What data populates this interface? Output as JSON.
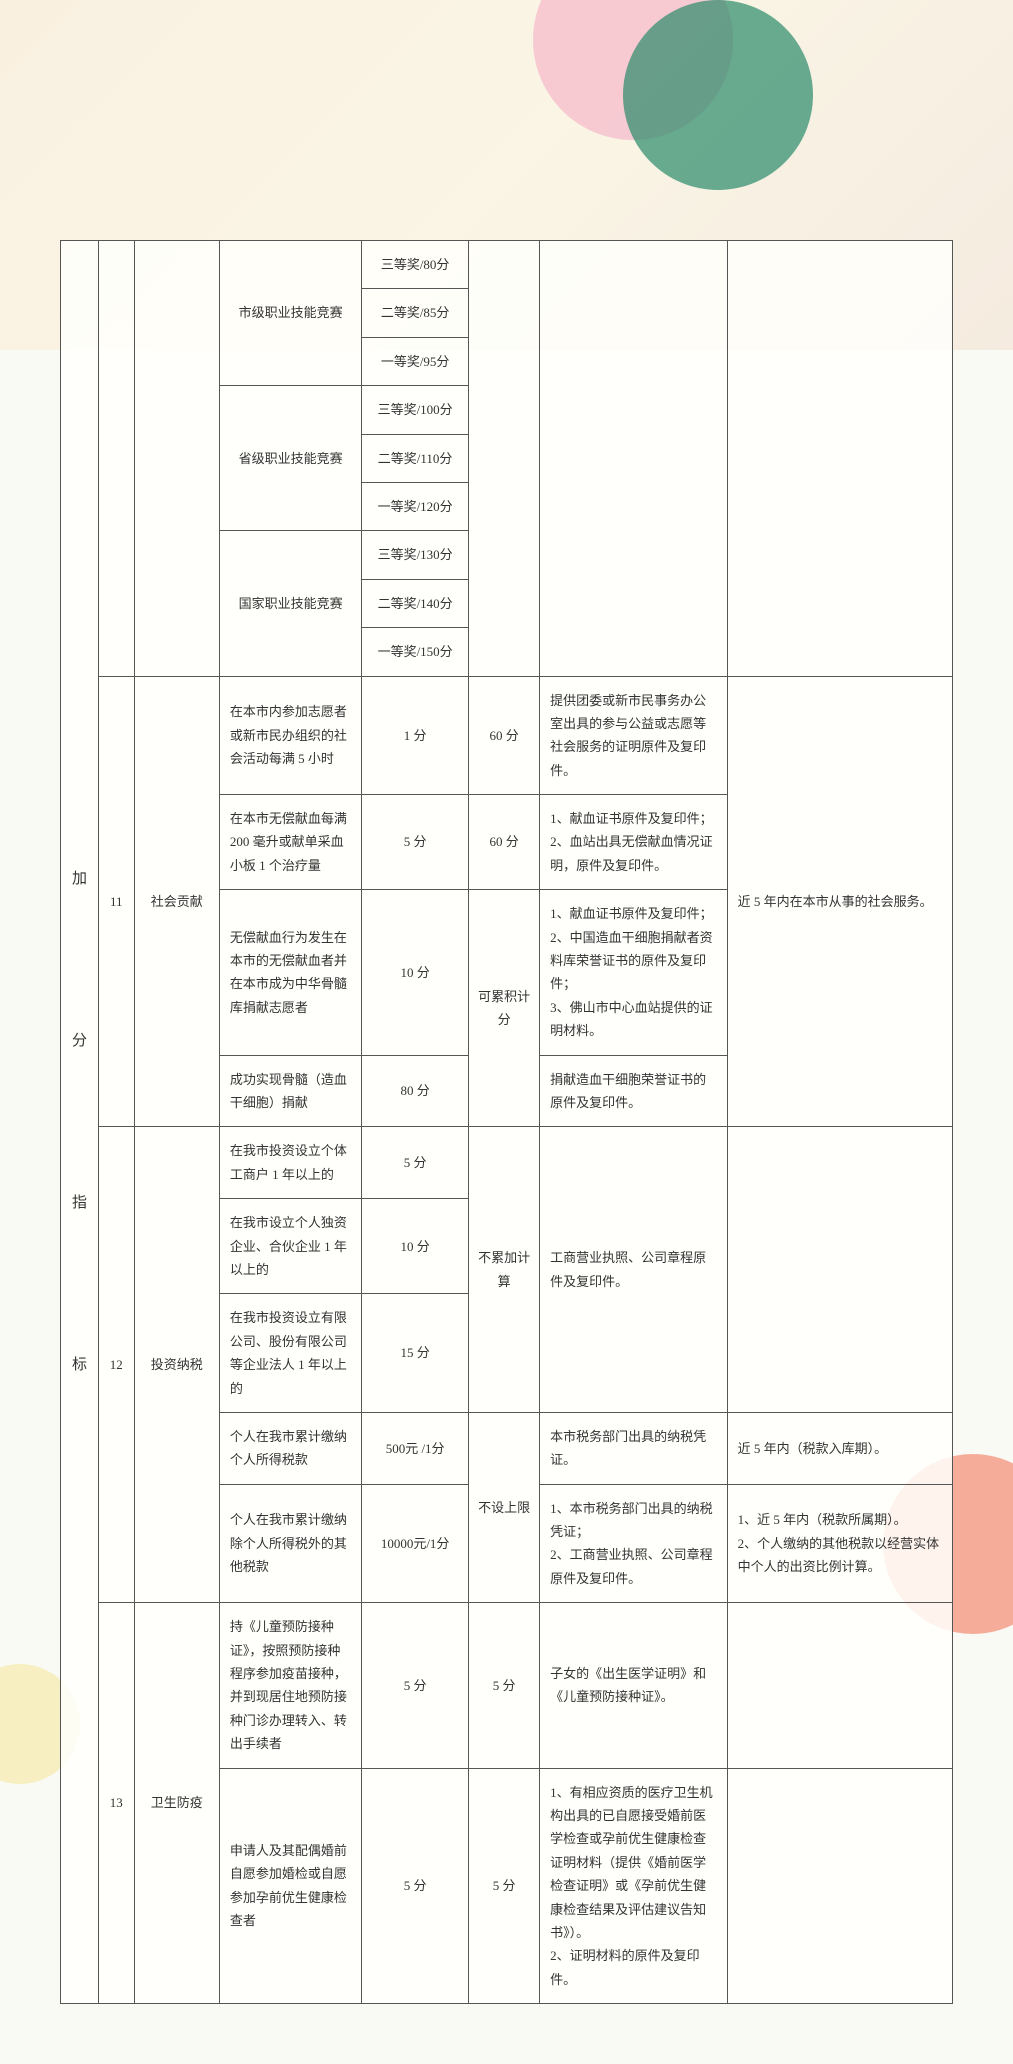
{
  "vertical_label": {
    "c1": "加",
    "c2": "分",
    "c3": "指",
    "c4": "标"
  },
  "comp": {
    "city_label": "市级职业技能竞赛",
    "city_p3": "三等奖/80分",
    "city_p2": "二等奖/85分",
    "city_p1": "一等奖/95分",
    "prov_label": "省级职业技能竞赛",
    "prov_p3": "三等奖/100分",
    "prov_p2": "二等奖/110分",
    "prov_p1": "一等奖/120分",
    "nat_label": "国家职业技能竞赛",
    "nat_p3": "三等奖/130分",
    "nat_p2": "二等奖/140分",
    "nat_p1": "一等奖/150分"
  },
  "row11": {
    "num": "11",
    "name": "社会贡献",
    "r1_desc": "在本市内参加志愿者或新市民办组织的社会活动每满 5 小时",
    "r1_score": "1 分",
    "r1_cap": "60 分",
    "r1_proof": "提供团委或新市民事务办公室出具的参与公益或志愿等社会服务的证明原件及复印件。",
    "r2_desc": "在本市无偿献血每满 200 毫升或献单采血小板 1 个治疗量",
    "r2_score": "5 分",
    "r2_cap": "60 分",
    "r2_proof": "1、献血证书原件及复印件；\n2、血站出具无偿献血情况证明，原件及复印件。",
    "r3_desc": "无偿献血行为发生在本市的无偿献血者并在本市成为中华骨髓库捐献志愿者",
    "r3_score": "10 分",
    "r3_proof": "1、献血证书原件及复印件；\n2、中国造血干细胞捐献者资料库荣誉证书的原件及复印件；\n3、佛山市中心血站提供的证明材料。",
    "r34_cap": "可累积计分",
    "r4_desc": "成功实现骨髓（造血干细胞）捐献",
    "r4_score": "80 分",
    "r4_proof": "捐献造血干细胞荣誉证书的原件及复印件。",
    "remark": "近 5 年内在本市从事的社会服务。"
  },
  "row12": {
    "num": "12",
    "name": "投资纳税",
    "r1_desc": "在我市投资设立个体工商户 1 年以上的",
    "r1_score": "5 分",
    "r2_desc": "在我市设立个人独资企业、合伙企业 1 年以上的",
    "r2_score": "10 分",
    "r3_desc": "在我市投资设立有限公司、股份有限公司等企业法人 1 年以上的",
    "r3_score": "15 分",
    "cap123": "不累加计算",
    "proof123": "工商营业执照、公司章程原件及复印件。",
    "r4_desc": "个人在我市累计缴纳个人所得税款",
    "r4_score": "500元 /1分",
    "r4_proof": "本市税务部门出具的纳税凭证。",
    "r4_remark": "近 5 年内（税款入库期）。",
    "cap45": "不设上限",
    "r5_desc": "个人在我市累计缴纳除个人所得税外的其他税款",
    "r5_score": "10000元/1分",
    "r5_proof": "1、本市税务部门出具的纳税凭证；\n2、工商营业执照、公司章程原件及复印件。",
    "r5_remark": "1、近 5 年内（税款所属期）。\n2、个人缴纳的其他税款以经营实体中个人的出资比例计算。"
  },
  "row13": {
    "num": "13",
    "name": "卫生防疫",
    "r1_desc": "持《儿童预防接种证》，按照预防接种程序参加疫苗接种，并到现居住地预防接种门诊办理转入、转出手续者",
    "r1_score": "5 分",
    "r1_cap": "5 分",
    "r1_proof": "子女的《出生医学证明》和《儿童预防接种证》。",
    "r2_desc": "申请人及其配偶婚前自愿参加婚检或自愿参加孕前优生健康检查者",
    "r2_score": "5 分",
    "r2_cap": "5 分",
    "r2_proof": "1、有相应资质的医疗卫生机构出具的已自愿接受婚前医学检查或孕前优生健康检查证明材料（提供《婚前医学检查证明》或《孕前优生健康检查结果及评估建议告知书》）。\n2、证明材料的原件及复印件。"
  }
}
